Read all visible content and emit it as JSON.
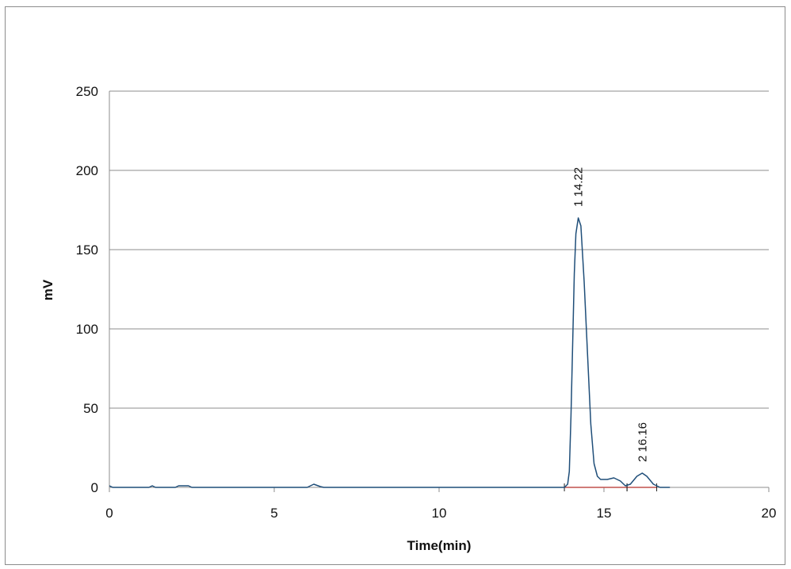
{
  "chart_data": {
    "type": "line",
    "xlabel": "Time(min)",
    "ylabel": "mV",
    "xlim": [
      0,
      20
    ],
    "ylim": [
      0,
      250
    ],
    "x_ticks": [
      "0",
      "5",
      "10",
      "15",
      "20"
    ],
    "y_ticks": [
      "0",
      "50",
      "100",
      "150",
      "200",
      "250"
    ],
    "grid": "horizontal",
    "colors": {
      "trace": "#1f4e79",
      "baseline": "#c0504d",
      "grid": "#8c8c8c"
    },
    "series": [
      {
        "points": [
          [
            0.0,
            1.0
          ],
          [
            0.1,
            0.0
          ],
          [
            1.2,
            0.0
          ],
          [
            1.3,
            1.0
          ],
          [
            1.4,
            0.0
          ],
          [
            2.0,
            0.0
          ],
          [
            2.1,
            1.0
          ],
          [
            2.4,
            1.0
          ],
          [
            2.5,
            0.0
          ],
          [
            6.0,
            0.0
          ],
          [
            6.2,
            2.0
          ],
          [
            6.4,
            0.5
          ],
          [
            6.5,
            0.0
          ],
          [
            11.2,
            0.0
          ],
          [
            13.8,
            0.0
          ],
          [
            13.9,
            2.0
          ],
          [
            13.95,
            10.0
          ],
          [
            14.0,
            45.0
          ],
          [
            14.05,
            90.0
          ],
          [
            14.1,
            135.0
          ],
          [
            14.15,
            160.0
          ],
          [
            14.22,
            170.0
          ],
          [
            14.3,
            165.0
          ],
          [
            14.4,
            130.0
          ],
          [
            14.5,
            85.0
          ],
          [
            14.6,
            40.0
          ],
          [
            14.7,
            15.0
          ],
          [
            14.8,
            7.0
          ],
          [
            14.9,
            5.0
          ],
          [
            15.1,
            5.0
          ],
          [
            15.3,
            6.0
          ],
          [
            15.5,
            4.0
          ],
          [
            15.65,
            1.0
          ],
          [
            15.8,
            2.0
          ],
          [
            16.0,
            7.0
          ],
          [
            16.16,
            9.0
          ],
          [
            16.3,
            7.0
          ],
          [
            16.5,
            2.0
          ],
          [
            16.7,
            0.0
          ],
          [
            17.0,
            0.0
          ]
        ]
      }
    ],
    "baselines": [
      {
        "x": [
          13.8,
          15.7
        ]
      },
      {
        "x": [
          15.7,
          16.6
        ]
      }
    ],
    "annotations": [
      {
        "text": "1 14.22",
        "x": 14.22,
        "y": 170
      },
      {
        "text": "2 16.16",
        "x": 16.16,
        "y": 9
      }
    ]
  }
}
